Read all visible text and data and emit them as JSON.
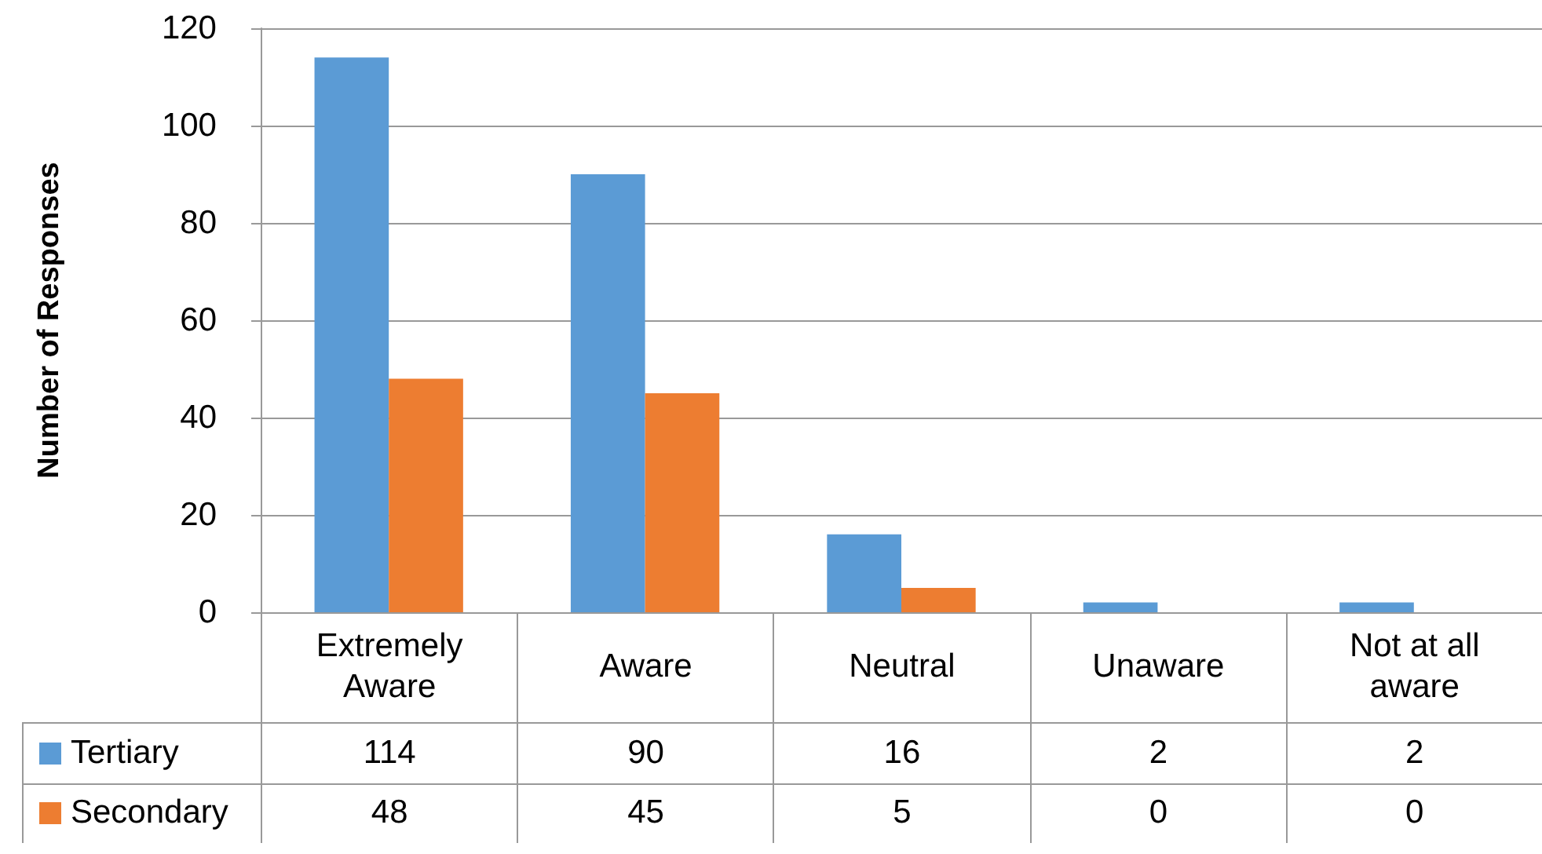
{
  "chart_data": {
    "type": "bar",
    "ylabel": "Number of Responses",
    "categories": [
      "Extremely Aware",
      "Aware",
      "Neutral",
      "Unaware",
      "Not at all aware"
    ],
    "series": [
      {
        "name": "Tertiary",
        "color": "#5b9bd5",
        "values": [
          114,
          90,
          16,
          2,
          2
        ]
      },
      {
        "name": "Secondary",
        "color": "#ed7d31",
        "values": [
          48,
          45,
          5,
          0,
          0
        ]
      }
    ],
    "ylim": [
      0,
      120
    ],
    "yticks": [
      0,
      20,
      40,
      60,
      80,
      100,
      120
    ],
    "grid": "y",
    "data_labels": true,
    "legend": "bottom left"
  }
}
